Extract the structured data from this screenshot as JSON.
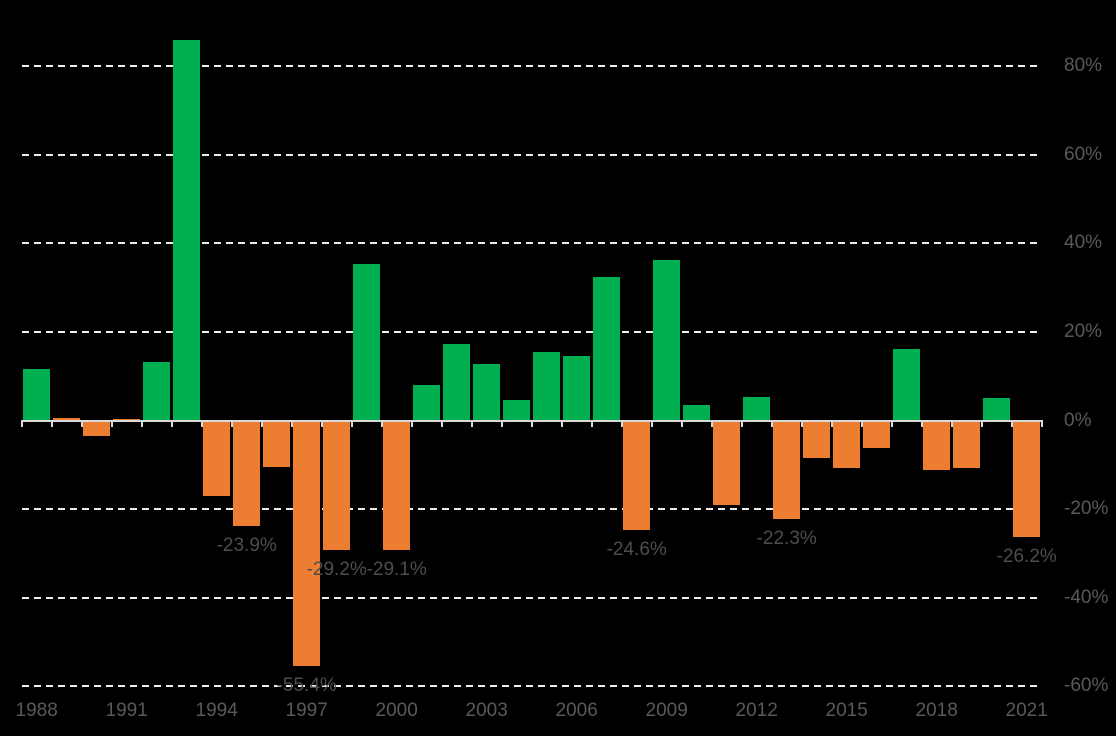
{
  "chart_data": {
    "type": "bar",
    "title": "",
    "legend": "none",
    "grid": "horizontal-dashed",
    "background_color": "#000000",
    "x": [
      1988,
      1989,
      1990,
      1991,
      1992,
      1993,
      1994,
      1995,
      1996,
      1997,
      1998,
      1999,
      2000,
      2001,
      2002,
      2003,
      2004,
      2005,
      2006,
      2007,
      2008,
      2009,
      2010,
      2011,
      2012,
      2013,
      2014,
      2015,
      2016,
      2017,
      2018,
      2019,
      2020,
      2021
    ],
    "values": [
      11.6,
      0.6,
      -3.5,
      0.4,
      13.2,
      85.8,
      -17.0,
      -23.9,
      -10.4,
      -55.4,
      -29.2,
      35.2,
      -29.1,
      7.9,
      17.2,
      12.8,
      4.7,
      15.5,
      14.5,
      32.3,
      -24.6,
      36.1,
      3.6,
      -19.1,
      5.2,
      -22.3,
      -8.5,
      -10.7,
      -6.2,
      16.1,
      -11.1,
      -10.7,
      5.1,
      -26.2
    ],
    "bar_colors": [
      "green",
      "orange",
      "orange",
      "orange",
      "green",
      "green",
      "orange",
      "orange",
      "orange",
      "orange",
      "orange",
      "green",
      "orange",
      "green",
      "green",
      "green",
      "green",
      "green",
      "green",
      "green",
      "orange",
      "green",
      "green",
      "orange",
      "green",
      "orange",
      "orange",
      "orange",
      "orange",
      "green",
      "orange",
      "orange",
      "green",
      "orange"
    ],
    "data_labels": {
      "1995": "-23.9%",
      "1997": "-55.4%",
      "1998": "-29.2%",
      "2000": "-29.1%",
      "2008": "-24.6%",
      "2013": "-22.3%",
      "2021": "-26.2%"
    },
    "y_axis": {
      "side": "right",
      "ticks": [
        80,
        60,
        40,
        20,
        0,
        -20,
        -40,
        -60
      ],
      "tick_labels": [
        "80%",
        "60%",
        "40%",
        "20%",
        "0%",
        "-20%",
        "-40%",
        "-60%"
      ],
      "implied_range": [
        -65,
        95
      ]
    },
    "x_axis": {
      "tick_label_years": [
        1988,
        1991,
        1994,
        1997,
        2000,
        2003,
        2006,
        2009,
        2012,
        2015,
        2018,
        2021
      ]
    },
    "colors": {
      "green": "#00B050",
      "orange": "#ED7D31",
      "gridline": "#EDEDED",
      "axis_line": "#D9D9D9",
      "axis_label_text": "#595959",
      "data_label_text": "#4D4D4D"
    }
  }
}
